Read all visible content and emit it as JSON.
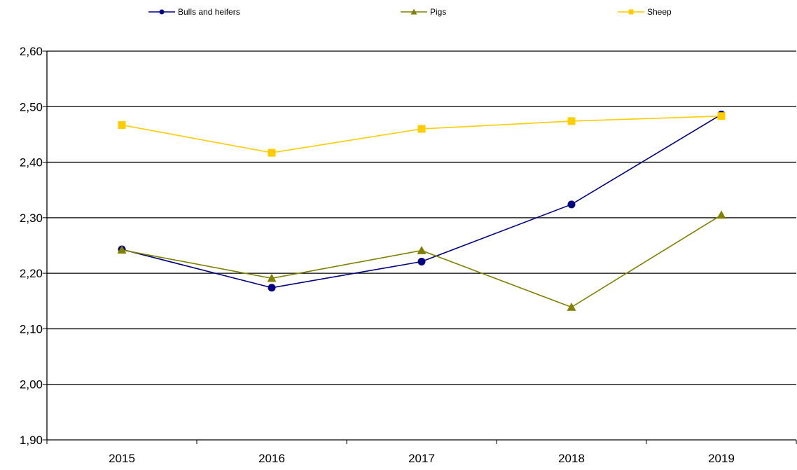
{
  "chart_data": {
    "type": "line",
    "categories": [
      "2015",
      "2016",
      "2017",
      "2018",
      "2019"
    ],
    "series": [
      {
        "name": "Bulls and heifers",
        "color": "#000080",
        "marker": "circle",
        "values": [
          2.243,
          2.174,
          2.221,
          2.324,
          2.486
        ]
      },
      {
        "name": "Pigs",
        "color": "#808000",
        "marker": "triangle",
        "values": [
          2.242,
          2.191,
          2.241,
          2.139,
          2.305
        ]
      },
      {
        "name": "Sheep",
        "color": "#FFCC00",
        "marker": "square",
        "values": [
          2.467,
          2.417,
          2.46,
          2.474,
          2.483
        ]
      }
    ],
    "ylim": [
      1.9,
      2.6
    ],
    "yticks": [
      "1,90",
      "2,00",
      "2,10",
      "2,20",
      "2,30",
      "2,40",
      "2,50",
      "2,60"
    ],
    "grid": true,
    "legend_position": "top"
  }
}
